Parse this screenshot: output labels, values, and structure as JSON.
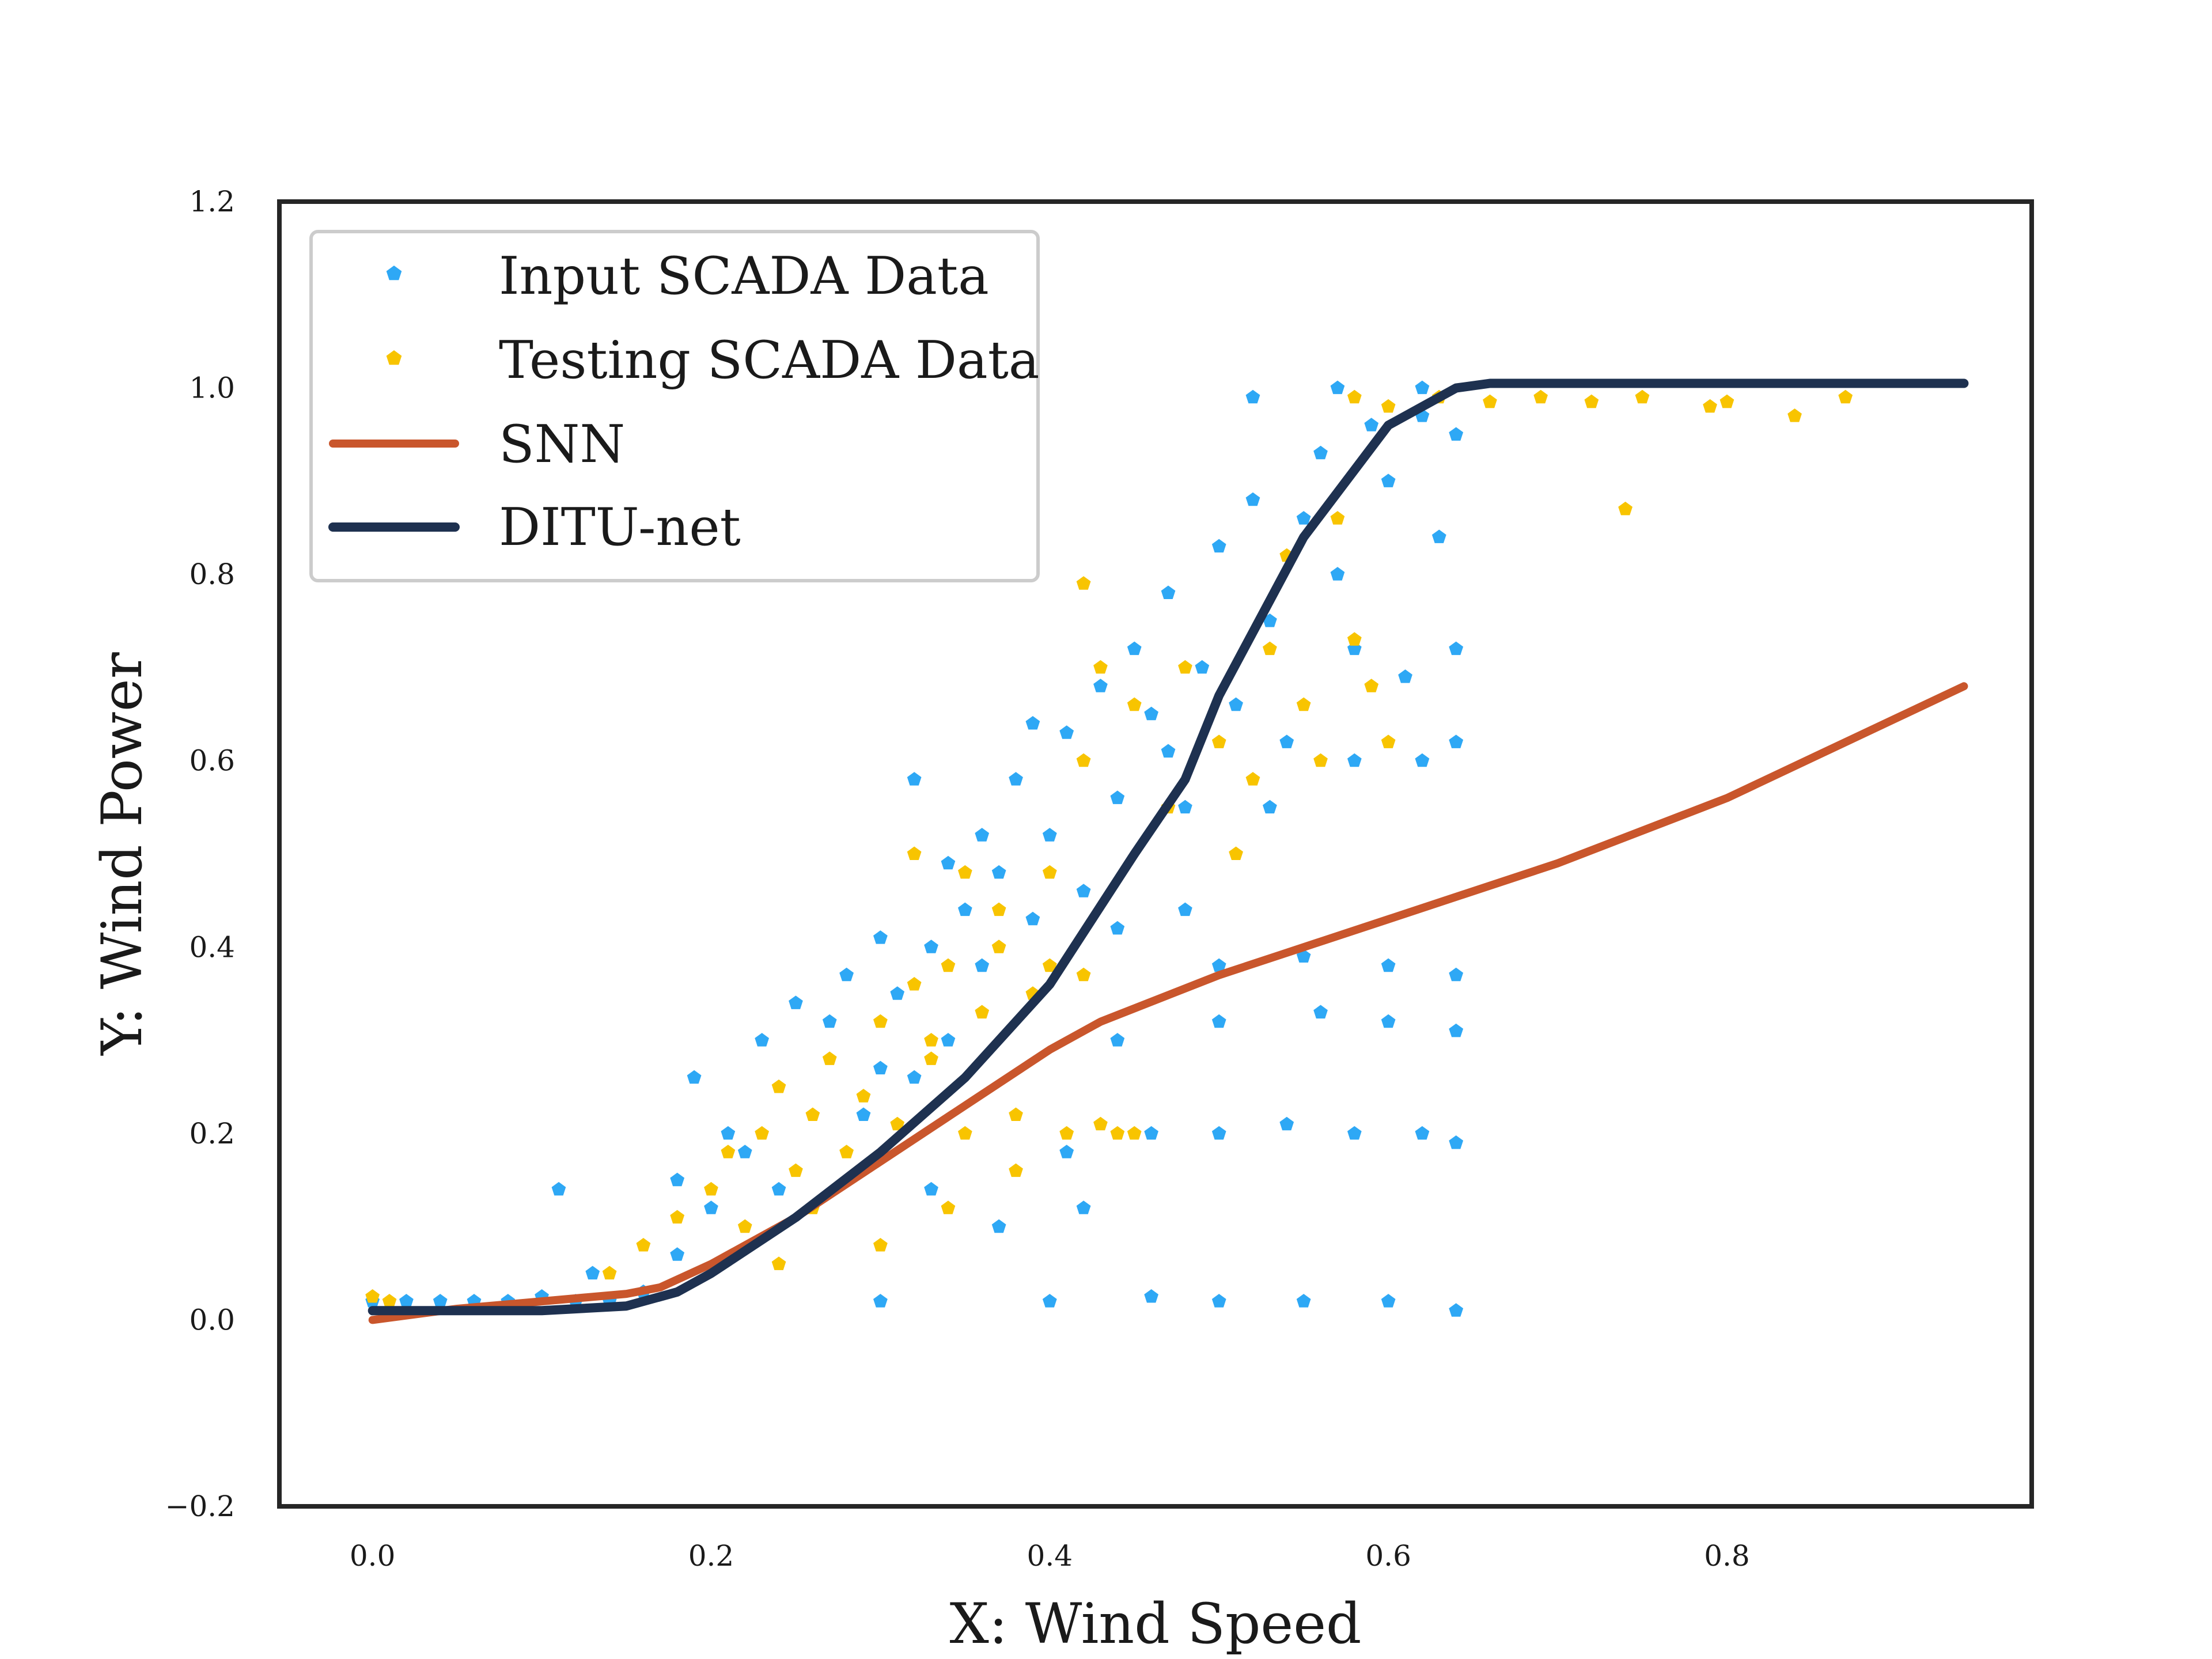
{
  "chart_data": {
    "type": "scatter",
    "title": "",
    "xlabel": "X: Wind Speed",
    "ylabel": "Y: Wind Power",
    "xlim": [
      -0.055,
      0.98
    ],
    "ylim": [
      -0.2,
      1.2
    ],
    "xticks": [
      0.0,
      0.2,
      0.4,
      0.6,
      0.8
    ],
    "xtick_labels": [
      "0.0",
      "0.2",
      "0.4",
      "0.6",
      "0.8"
    ],
    "yticks": [
      -0.2,
      0.0,
      0.2,
      0.4,
      0.6,
      0.8,
      1.0,
      1.2
    ],
    "ytick_labels": [
      "−0.2",
      "0.0",
      "0.2",
      "0.4",
      "0.6",
      "0.8",
      "1.0",
      "1.2"
    ],
    "grid": false,
    "legend_position": "top-left",
    "series": [
      {
        "name": "Input SCADA Data",
        "kind": "scatter",
        "marker": "pentagon",
        "color": "#2ea8f5",
        "points": [
          [
            0.0,
            0.02
          ],
          [
            0.02,
            0.02
          ],
          [
            0.04,
            0.02
          ],
          [
            0.06,
            0.02
          ],
          [
            0.08,
            0.02
          ],
          [
            0.1,
            0.025
          ],
          [
            0.12,
            0.02
          ],
          [
            0.13,
            0.05
          ],
          [
            0.11,
            0.14
          ],
          [
            0.14,
            0.02
          ],
          [
            0.16,
            0.03
          ],
          [
            0.18,
            0.07
          ],
          [
            0.2,
            0.12
          ],
          [
            0.18,
            0.15
          ],
          [
            0.21,
            0.2
          ],
          [
            0.19,
            0.26
          ],
          [
            0.22,
            0.18
          ],
          [
            0.24,
            0.14
          ],
          [
            0.23,
            0.3
          ],
          [
            0.25,
            0.34
          ],
          [
            0.27,
            0.32
          ],
          [
            0.28,
            0.37
          ],
          [
            0.29,
            0.22
          ],
          [
            0.3,
            0.27
          ],
          [
            0.3,
            0.41
          ],
          [
            0.31,
            0.35
          ],
          [
            0.32,
            0.26
          ],
          [
            0.33,
            0.4
          ],
          [
            0.34,
            0.3
          ],
          [
            0.35,
            0.44
          ],
          [
            0.36,
            0.38
          ],
          [
            0.37,
            0.48
          ],
          [
            0.38,
            0.58
          ],
          [
            0.39,
            0.43
          ],
          [
            0.4,
            0.52
          ],
          [
            0.41,
            0.63
          ],
          [
            0.42,
            0.46
          ],
          [
            0.43,
            0.68
          ],
          [
            0.44,
            0.56
          ],
          [
            0.45,
            0.72
          ],
          [
            0.46,
            0.65
          ],
          [
            0.47,
            0.61
          ],
          [
            0.47,
            0.78
          ],
          [
            0.48,
            0.55
          ],
          [
            0.49,
            0.7
          ],
          [
            0.5,
            0.83
          ],
          [
            0.51,
            0.66
          ],
          [
            0.52,
            0.88
          ],
          [
            0.53,
            0.75
          ],
          [
            0.54,
            0.62
          ],
          [
            0.55,
            0.86
          ],
          [
            0.56,
            0.93
          ],
          [
            0.57,
            0.8
          ],
          [
            0.58,
            0.72
          ],
          [
            0.59,
            0.96
          ],
          [
            0.6,
            0.9
          ],
          [
            0.61,
            0.69
          ],
          [
            0.62,
            0.97
          ],
          [
            0.63,
            0.84
          ],
          [
            0.64,
            0.62
          ],
          [
            0.52,
            0.99
          ],
          [
            0.57,
            1.0
          ],
          [
            0.62,
            1.0
          ],
          [
            0.64,
            0.95
          ],
          [
            0.5,
            0.38
          ],
          [
            0.55,
            0.39
          ],
          [
            0.6,
            0.38
          ],
          [
            0.64,
            0.37
          ],
          [
            0.5,
            0.32
          ],
          [
            0.56,
            0.33
          ],
          [
            0.6,
            0.32
          ],
          [
            0.64,
            0.31
          ],
          [
            0.46,
            0.2
          ],
          [
            0.5,
            0.2
          ],
          [
            0.54,
            0.21
          ],
          [
            0.58,
            0.2
          ],
          [
            0.62,
            0.2
          ],
          [
            0.64,
            0.19
          ],
          [
            0.3,
            0.02
          ],
          [
            0.4,
            0.02
          ],
          [
            0.46,
            0.025
          ],
          [
            0.5,
            0.02
          ],
          [
            0.55,
            0.02
          ],
          [
            0.6,
            0.02
          ],
          [
            0.64,
            0.01
          ],
          [
            0.33,
            0.14
          ],
          [
            0.37,
            0.1
          ],
          [
            0.41,
            0.18
          ],
          [
            0.44,
            0.3
          ],
          [
            0.42,
            0.12
          ],
          [
            0.32,
            0.58
          ],
          [
            0.36,
            0.52
          ],
          [
            0.39,
            0.64
          ],
          [
            0.34,
            0.49
          ],
          [
            0.44,
            0.42
          ],
          [
            0.48,
            0.44
          ],
          [
            0.53,
            0.55
          ],
          [
            0.58,
            0.6
          ],
          [
            0.62,
            0.6
          ],
          [
            0.64,
            0.72
          ]
        ]
      },
      {
        "name": "Testing SCADA Data",
        "kind": "scatter",
        "marker": "pentagon",
        "color": "#f8c400",
        "points": [
          [
            0.0,
            0.025
          ],
          [
            0.01,
            0.02
          ],
          [
            0.14,
            0.05
          ],
          [
            0.16,
            0.08
          ],
          [
            0.18,
            0.11
          ],
          [
            0.2,
            0.14
          ],
          [
            0.21,
            0.18
          ],
          [
            0.22,
            0.1
          ],
          [
            0.23,
            0.2
          ],
          [
            0.24,
            0.25
          ],
          [
            0.25,
            0.16
          ],
          [
            0.26,
            0.22
          ],
          [
            0.27,
            0.28
          ],
          [
            0.28,
            0.18
          ],
          [
            0.29,
            0.24
          ],
          [
            0.3,
            0.32
          ],
          [
            0.31,
            0.21
          ],
          [
            0.32,
            0.36
          ],
          [
            0.33,
            0.28
          ],
          [
            0.34,
            0.38
          ],
          [
            0.35,
            0.2
          ],
          [
            0.36,
            0.33
          ],
          [
            0.37,
            0.4
          ],
          [
            0.38,
            0.22
          ],
          [
            0.39,
            0.35
          ],
          [
            0.4,
            0.38
          ],
          [
            0.41,
            0.2
          ],
          [
            0.42,
            0.37
          ],
          [
            0.43,
            0.21
          ],
          [
            0.44,
            0.2
          ],
          [
            0.45,
            0.2
          ],
          [
            0.4,
            0.48
          ],
          [
            0.42,
            0.6
          ],
          [
            0.43,
            0.7
          ],
          [
            0.45,
            0.66
          ],
          [
            0.47,
            0.55
          ],
          [
            0.48,
            0.7
          ],
          [
            0.5,
            0.62
          ],
          [
            0.51,
            0.5
          ],
          [
            0.52,
            0.58
          ],
          [
            0.53,
            0.72
          ],
          [
            0.54,
            0.82
          ],
          [
            0.55,
            0.66
          ],
          [
            0.56,
            0.6
          ],
          [
            0.57,
            0.86
          ],
          [
            0.58,
            0.73
          ],
          [
            0.59,
            0.68
          ],
          [
            0.6,
            0.62
          ],
          [
            0.58,
            0.99
          ],
          [
            0.6,
            0.98
          ],
          [
            0.63,
            0.99
          ],
          [
            0.66,
            0.985
          ],
          [
            0.69,
            0.99
          ],
          [
            0.72,
            0.985
          ],
          [
            0.74,
            0.87
          ],
          [
            0.75,
            0.99
          ],
          [
            0.79,
            0.98
          ],
          [
            0.8,
            0.985
          ],
          [
            0.84,
            0.97
          ],
          [
            0.87,
            0.99
          ],
          [
            0.32,
            0.5
          ],
          [
            0.35,
            0.48
          ],
          [
            0.42,
            0.79
          ],
          [
            0.37,
            0.44
          ],
          [
            0.33,
            0.3
          ],
          [
            0.26,
            0.12
          ],
          [
            0.24,
            0.06
          ],
          [
            0.3,
            0.08
          ],
          [
            0.34,
            0.12
          ],
          [
            0.38,
            0.16
          ]
        ]
      },
      {
        "name": "SNN",
        "kind": "line",
        "color": "#c9562c",
        "x": [
          0.0,
          0.05,
          0.1,
          0.15,
          0.17,
          0.2,
          0.25,
          0.3,
          0.35,
          0.4,
          0.43,
          0.5,
          0.6,
          0.7,
          0.8,
          0.94
        ],
        "y": [
          0.0,
          0.012,
          0.02,
          0.028,
          0.035,
          0.06,
          0.11,
          0.17,
          0.23,
          0.29,
          0.32,
          0.37,
          0.43,
          0.49,
          0.56,
          0.68
        ]
      },
      {
        "name": "DITU-net",
        "kind": "line",
        "color": "#1e3150",
        "x": [
          0.0,
          0.1,
          0.15,
          0.18,
          0.2,
          0.25,
          0.3,
          0.35,
          0.4,
          0.45,
          0.48,
          0.5,
          0.55,
          0.6,
          0.64,
          0.66,
          0.68,
          0.75,
          0.94
        ],
        "y": [
          0.01,
          0.01,
          0.015,
          0.03,
          0.05,
          0.11,
          0.18,
          0.26,
          0.36,
          0.5,
          0.58,
          0.67,
          0.84,
          0.96,
          1.0,
          1.005,
          1.005,
          1.005,
          1.005
        ]
      }
    ]
  }
}
